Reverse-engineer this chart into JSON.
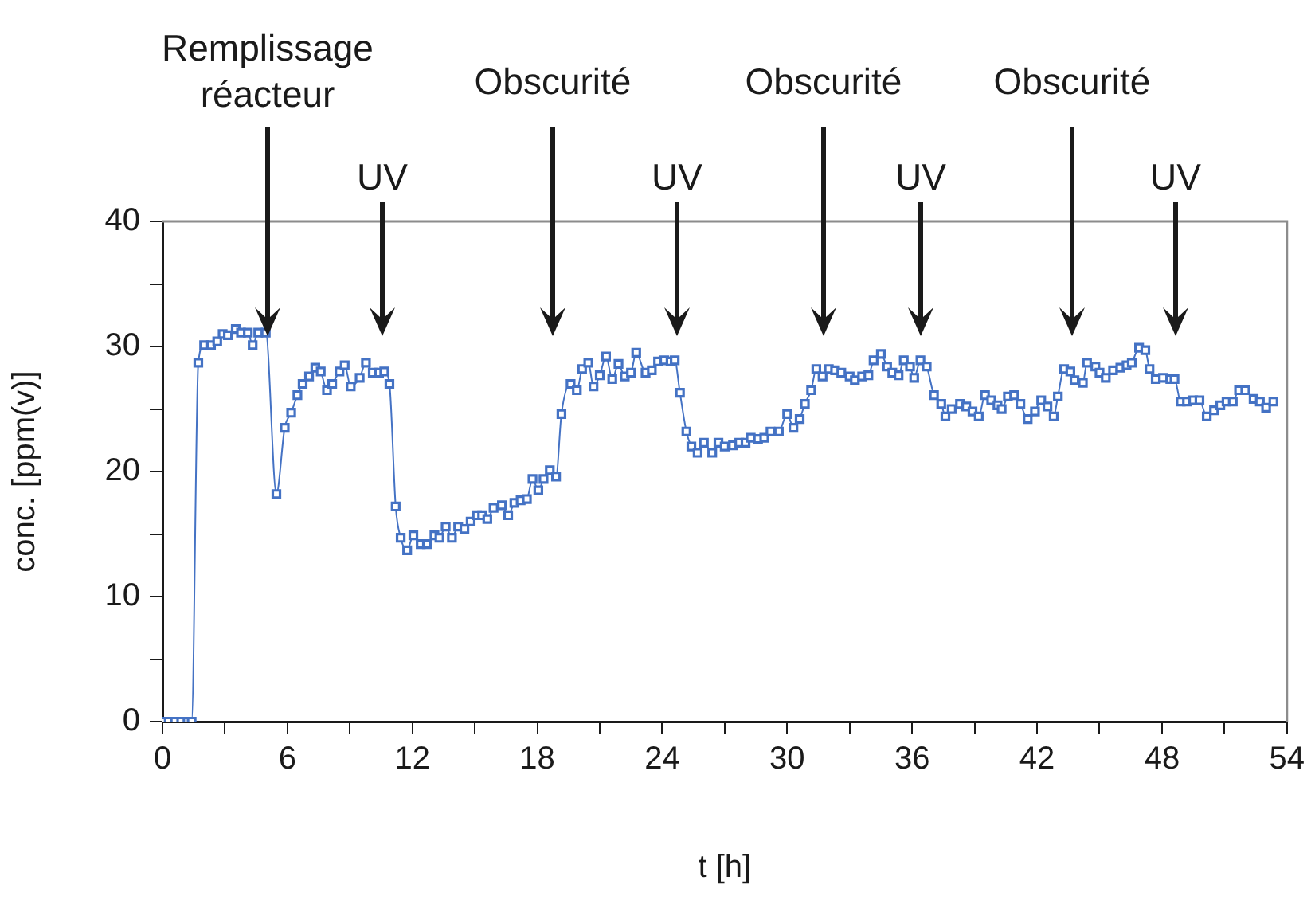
{
  "chart_data": {
    "type": "line",
    "xlabel": "t [h]",
    "ylabel": "conc. [ppm(v)]",
    "xlim": [
      0,
      54
    ],
    "ylim": [
      0,
      40
    ],
    "xticks": [
      0,
      {
        "value": 3,
        "label": null
      },
      6,
      {
        "value": 9,
        "label": null
      },
      12,
      {
        "value": 15,
        "label": null
      },
      18,
      {
        "value": 21,
        "label": null
      },
      24,
      {
        "value": 27,
        "label": null
      },
      30,
      {
        "value": 33,
        "label": null
      },
      36,
      {
        "value": 39,
        "label": null
      },
      42,
      {
        "value": 45,
        "label": null
      },
      48,
      {
        "value": 51,
        "label": null
      },
      54
    ],
    "yticks": [
      0,
      {
        "value": 5,
        "label": null
      },
      10,
      {
        "value": 15,
        "label": null
      },
      20,
      {
        "value": 25,
        "label": null
      },
      30,
      {
        "value": 35,
        "label": null
      },
      40
    ],
    "grid": false,
    "legend": false,
    "marker": "square",
    "line_style": "solid",
    "x": [
      0,
      0.3,
      0.6,
      0.9,
      1.2,
      1.4,
      1.72,
      2.0,
      2.33,
      2.63,
      2.89,
      3.14,
      3.52,
      3.77,
      4.1,
      4.33,
      4.6,
      4.96,
      5.47,
      5.87,
      6.18,
      6.48,
      6.73,
      7.04,
      7.34,
      7.6,
      7.9,
      8.15,
      8.5,
      8.75,
      9.04,
      9.47,
      9.77,
      10.1,
      10.4,
      10.65,
      10.9,
      11.2,
      11.44,
      11.75,
      12.05,
      12.4,
      12.7,
      13.06,
      13.3,
      13.6,
      13.9,
      14.2,
      14.5,
      14.8,
      15.1,
      15.35,
      15.6,
      15.9,
      16.3,
      16.6,
      16.9,
      17.2,
      17.5,
      17.77,
      18.05,
      18.3,
      18.6,
      18.9,
      19.16,
      19.6,
      19.9,
      20.15,
      20.45,
      20.7,
      21.0,
      21.3,
      21.6,
      21.9,
      22.2,
      22.5,
      22.75,
      23.2,
      23.5,
      23.8,
      24.1,
      24.4,
      24.6,
      24.85,
      25.16,
      25.4,
      25.7,
      26.0,
      26.4,
      26.7,
      27.0,
      27.4,
      27.7,
      28.0,
      28.25,
      28.6,
      28.9,
      29.2,
      29.6,
      30.0,
      30.3,
      30.6,
      30.85,
      31.15,
      31.4,
      31.7,
      32.0,
      32.3,
      32.6,
      33.0,
      33.25,
      33.6,
      33.9,
      34.15,
      34.5,
      34.8,
      35.05,
      35.35,
      35.6,
      35.9,
      36.1,
      36.4,
      36.7,
      37.05,
      37.4,
      37.6,
      37.9,
      38.3,
      38.6,
      38.9,
      39.2,
      39.5,
      39.8,
      40.1,
      40.3,
      40.6,
      40.9,
      41.2,
      41.55,
      41.9,
      42.2,
      42.5,
      42.8,
      43.0,
      43.3,
      43.6,
      43.8,
      44.2,
      44.4,
      44.8,
      45.0,
      45.3,
      45.65,
      46.0,
      46.3,
      46.55,
      46.9,
      47.2,
      47.4,
      47.7,
      48.05,
      48.4,
      48.6,
      48.9,
      49.2,
      49.5,
      49.8,
      50.15,
      50.5,
      50.8,
      51.1,
      51.4,
      51.7,
      52.0,
      52.4,
      52.7,
      53.0,
      53.35
    ],
    "series": [
      {
        "color": "#4472c4",
        "values": [
          0,
          0,
          0,
          0,
          0,
          0,
          28.7,
          30.1,
          30.1,
          30.4,
          31.0,
          30.9,
          31.4,
          31.1,
          31.1,
          30.1,
          31.1,
          31.1,
          18.2,
          23.5,
          24.7,
          26.1,
          27.0,
          27.6,
          28.3,
          28.0,
          26.5,
          27.0,
          28.0,
          28.5,
          26.8,
          27.5,
          28.7,
          27.9,
          27.9,
          28.0,
          27.0,
          17.2,
          14.7,
          13.7,
          14.9,
          14.2,
          14.2,
          14.9,
          14.7,
          15.6,
          14.7,
          15.6,
          15.4,
          16.0,
          16.5,
          16.5,
          16.2,
          17.1,
          17.3,
          16.5,
          17.5,
          17.7,
          17.8,
          19.4,
          18.5,
          19.4,
          20.1,
          19.6,
          24.6,
          27.0,
          26.5,
          28.2,
          28.7,
          26.8,
          27.7,
          29.2,
          27.4,
          28.6,
          27.6,
          27.9,
          29.5,
          27.9,
          28.1,
          28.8,
          28.9,
          28.8,
          28.9,
          26.3,
          23.2,
          22.0,
          21.5,
          22.3,
          21.5,
          22.3,
          22.0,
          22.1,
          22.3,
          22.3,
          22.7,
          22.6,
          22.7,
          23.2,
          23.2,
          24.6,
          23.5,
          24.2,
          25.4,
          26.5,
          28.2,
          27.6,
          28.2,
          28.1,
          27.9,
          27.6,
          27.3,
          27.6,
          27.7,
          28.9,
          29.4,
          28.4,
          27.9,
          27.7,
          28.9,
          28.4,
          27.5,
          28.9,
          28.4,
          26.1,
          25.4,
          24.4,
          25.0,
          25.4,
          25.2,
          24.8,
          24.4,
          26.1,
          25.7,
          25.3,
          25.0,
          26.0,
          26.1,
          25.4,
          24.2,
          24.8,
          25.7,
          25.2,
          24.4,
          26.0,
          28.2,
          28.0,
          27.3,
          27.1,
          28.7,
          28.4,
          27.9,
          27.5,
          28.1,
          28.3,
          28.5,
          28.7,
          29.9,
          29.7,
          28.2,
          27.4,
          27.5,
          27.4,
          27.4,
          25.6,
          25.6,
          25.7,
          25.7,
          24.4,
          24.9,
          25.3,
          25.6,
          25.6,
          26.5,
          26.5,
          25.8,
          25.6,
          25.1,
          25.6
        ]
      }
    ],
    "annotations": [
      "Remplissage réacteur",
      "UV",
      "Obscurité",
      "UV",
      "Obscurité",
      "UV",
      "Obscurité",
      "UV"
    ]
  }
}
